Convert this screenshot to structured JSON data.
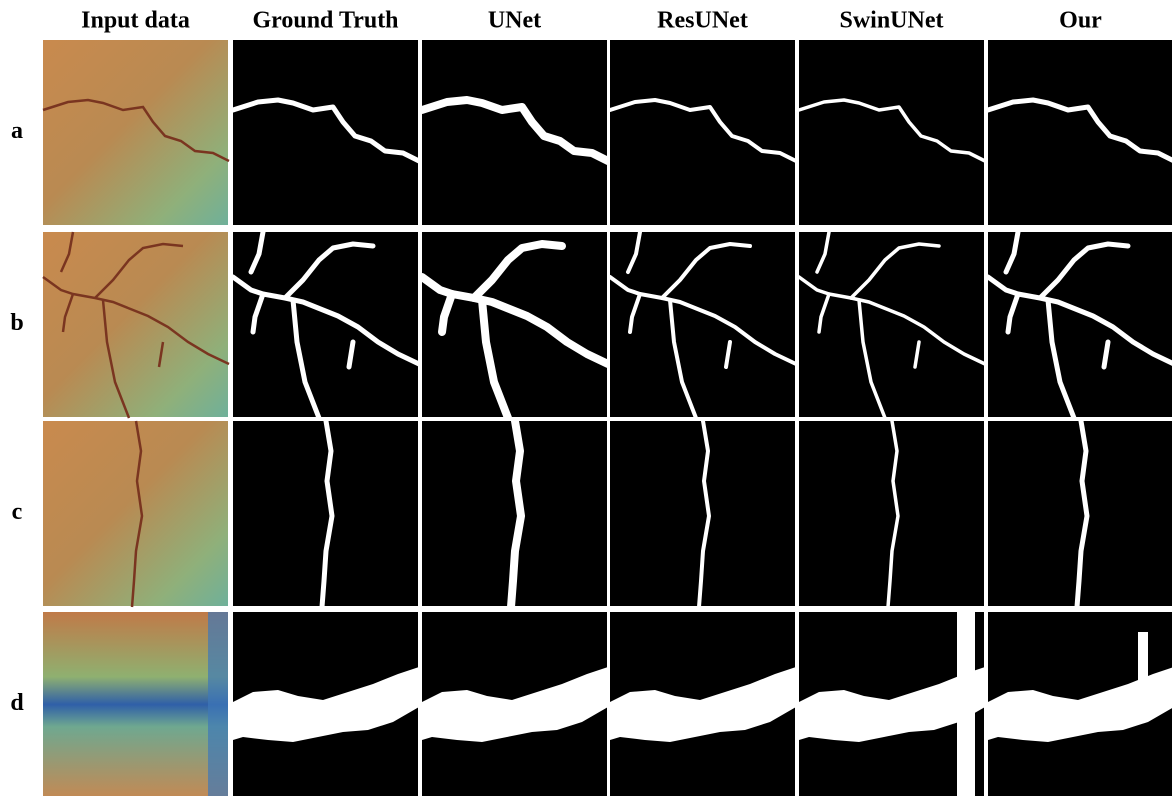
{
  "columns": [
    "Input data",
    "Ground Truth",
    "UNet",
    "ResUNet",
    "SwinUNet",
    "Our"
  ],
  "rows": [
    "a",
    "b",
    "c",
    "d"
  ]
}
